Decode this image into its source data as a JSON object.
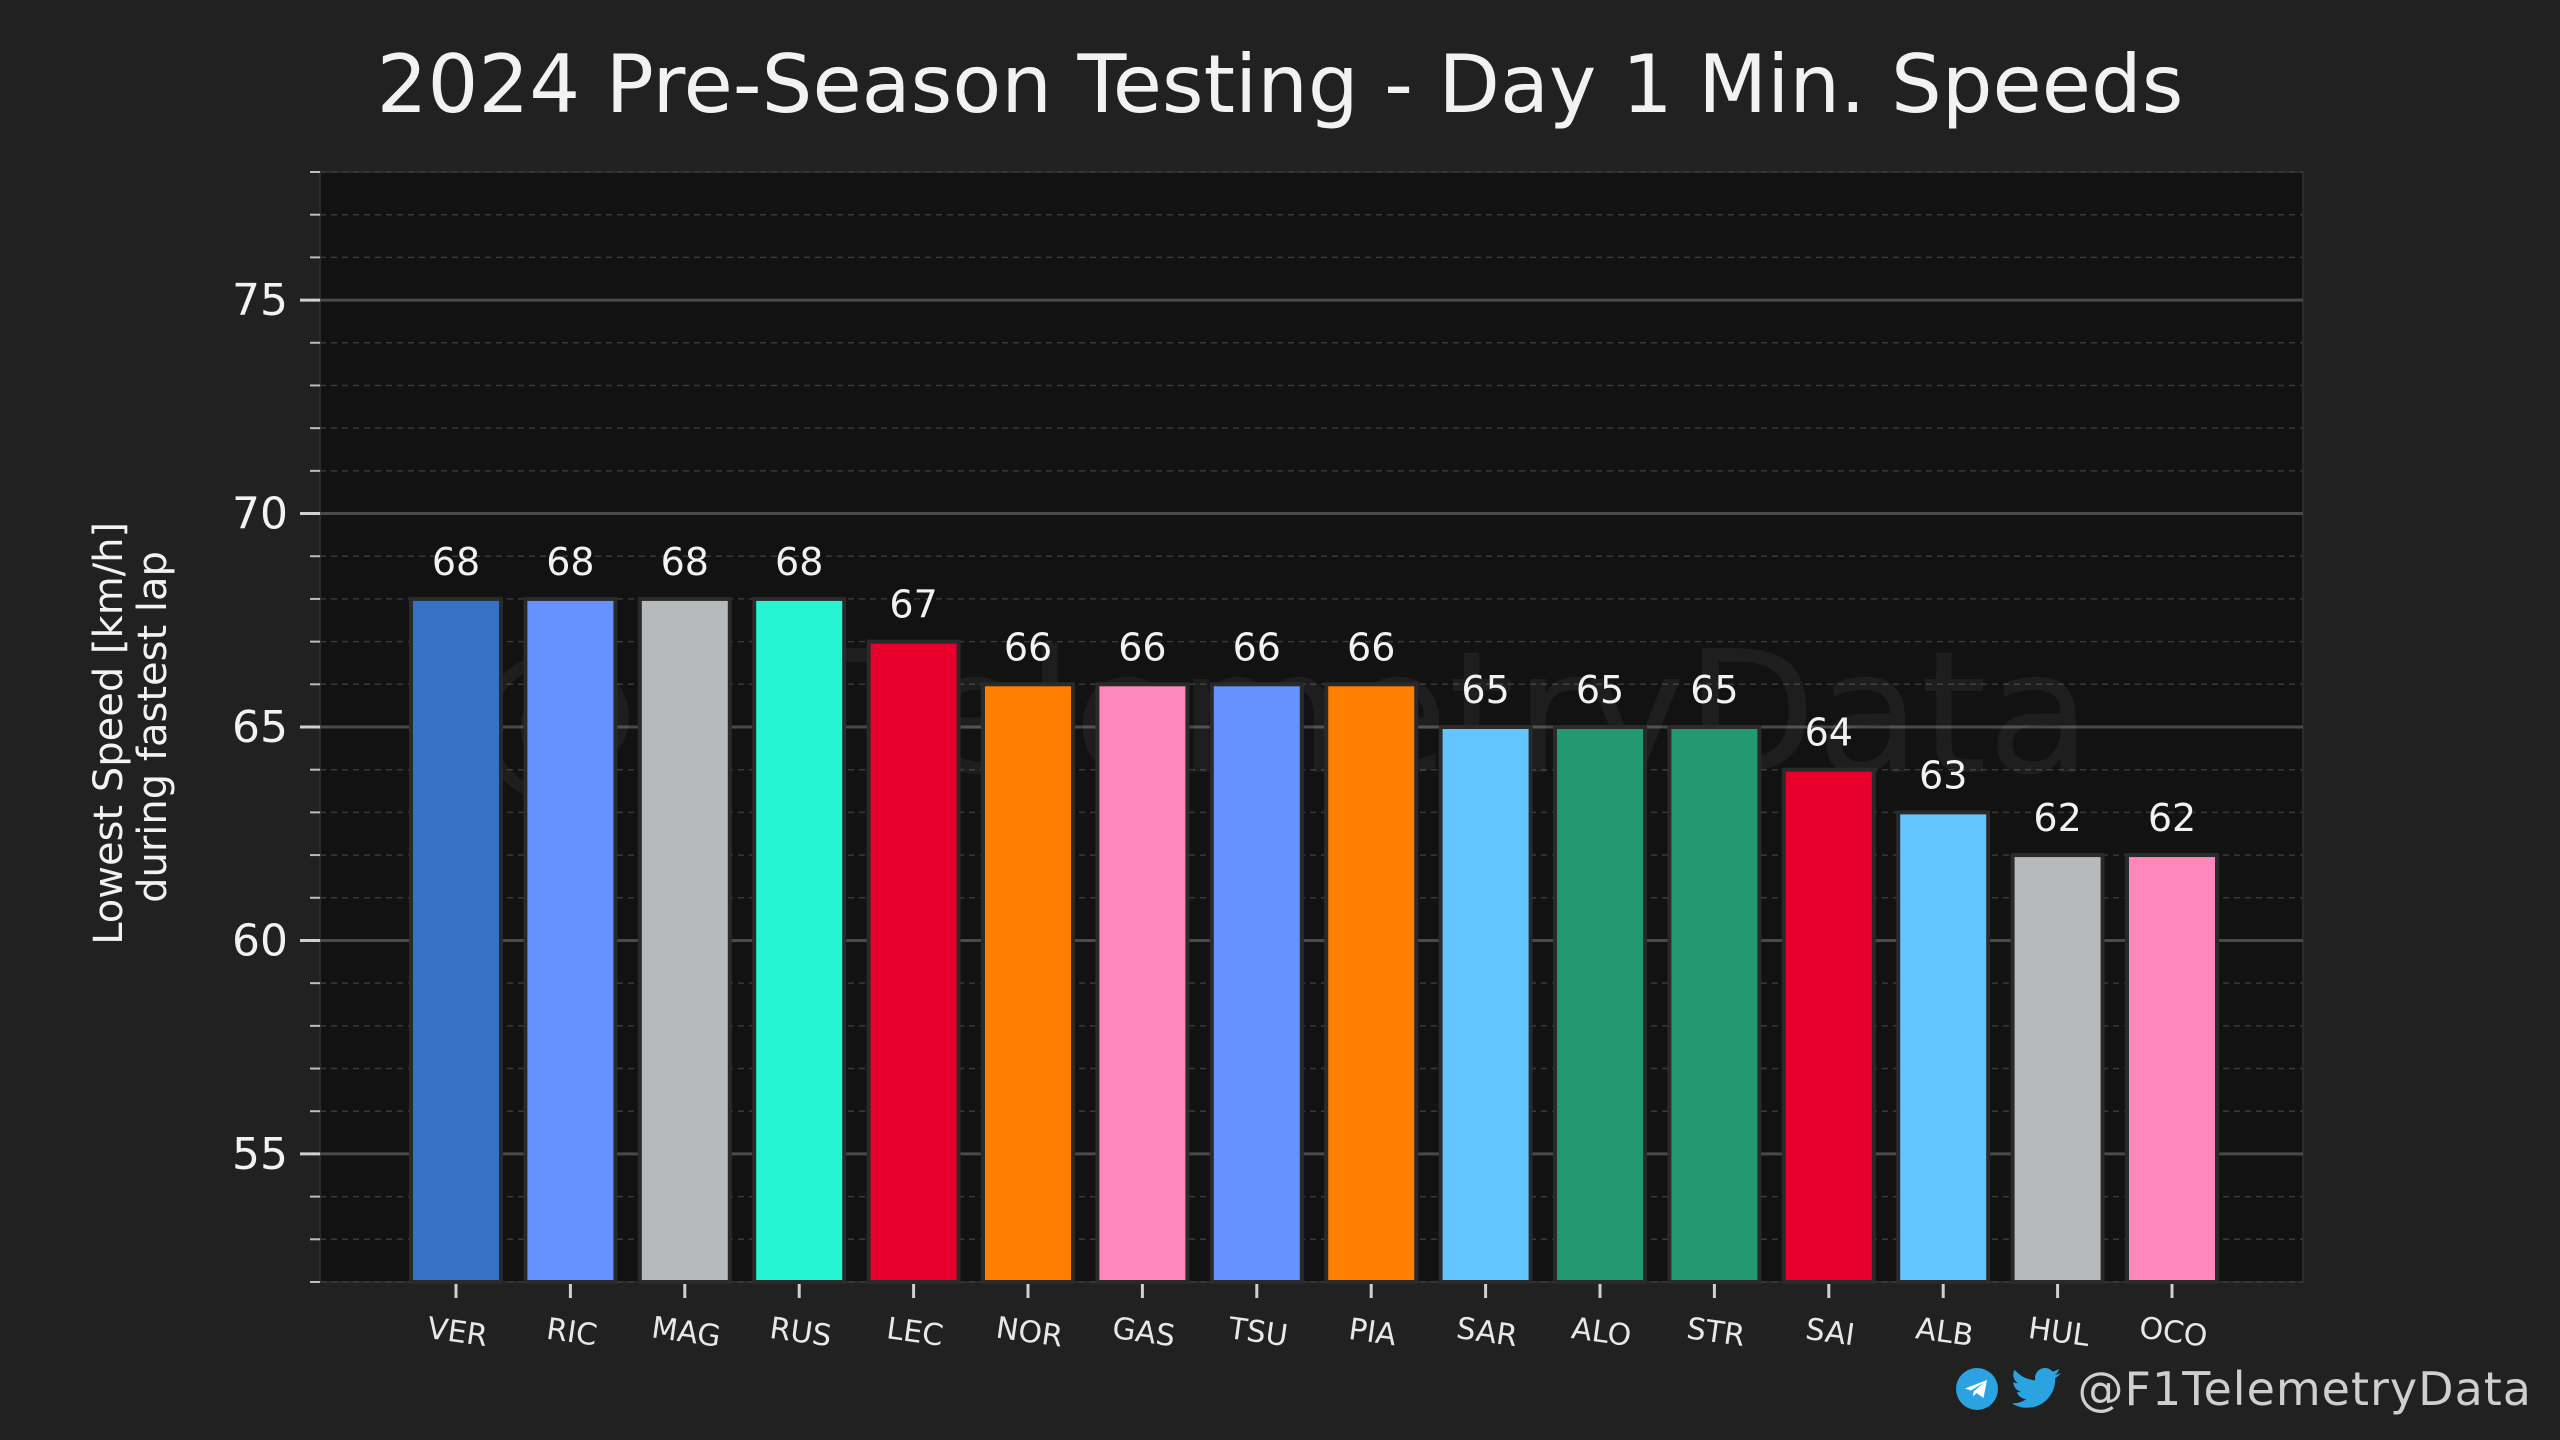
{
  "chart_data": {
    "type": "bar",
    "title": "2024 Pre-Season Testing - Day 1 Min. Speeds",
    "ylabel_line1": "Lowest Speed [km/h]",
    "ylabel_line2": "during fastest lap",
    "ylim": [
      52,
      78
    ],
    "yticks": [
      55,
      60,
      65,
      70,
      75
    ],
    "grid": true,
    "categories": [
      "VER",
      "RIC",
      "MAG",
      "RUS",
      "LEC",
      "NOR",
      "GAS",
      "TSU",
      "PIA",
      "SAR",
      "ALO",
      "STR",
      "SAI",
      "ALB",
      "HUL",
      "OCO"
    ],
    "values": [
      68,
      68,
      68,
      68,
      67,
      66,
      66,
      66,
      66,
      65,
      65,
      65,
      64,
      63,
      62,
      62
    ],
    "data_labels": [
      "68",
      "68",
      "68",
      "68",
      "67",
      "66",
      "66",
      "66",
      "66",
      "65",
      "65",
      "65",
      "64",
      "63",
      "62",
      "62"
    ],
    "colors": [
      "#3671C6",
      "#6692FF",
      "#B6BABD",
      "#27F4D2",
      "#E8002D",
      "#FF8000",
      "#FF87BC",
      "#6692FF",
      "#FF8000",
      "#64C4FF",
      "#229971",
      "#229971",
      "#E8002D",
      "#64C4FF",
      "#B6BABD",
      "#FF87BC"
    ]
  },
  "watermark": "@F1TelemetryData",
  "footer": {
    "handle": "@F1TelemetryData",
    "icons": [
      "telegram-icon",
      "twitter-icon"
    ]
  }
}
